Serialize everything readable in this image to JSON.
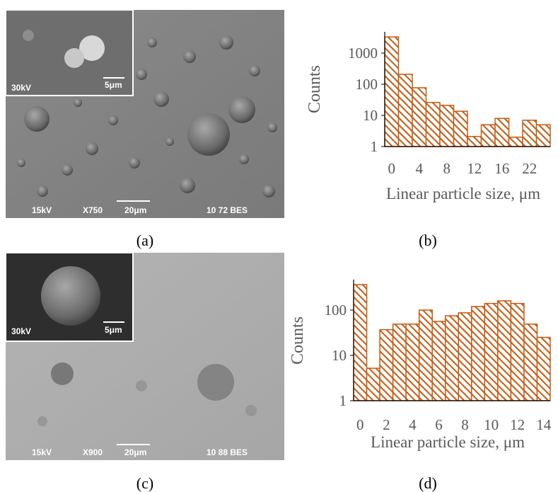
{
  "chart_data": [
    {
      "type": "bar",
      "ylabel": "Counts",
      "xlabel": "Linear particle size, μm",
      "categories": [
        "0",
        null,
        "4",
        null,
        "8",
        null,
        "12",
        null,
        "16",
        null,
        "22",
        null
      ],
      "values": [
        3300,
        208,
        77,
        26,
        21,
        13.6,
        2.1,
        5,
        8,
        2,
        7,
        5
      ],
      "color": "#c55a11",
      "log_y": true,
      "ylim": [
        1,
        4800
      ],
      "yticks": [
        1,
        10,
        100,
        1000
      ]
    },
    {
      "type": "bar",
      "ylabel": "Counts",
      "xlabel": "Linear particle size, μm",
      "categories": [
        "0",
        null,
        "2",
        null,
        "4",
        null,
        "6",
        null,
        "8",
        null,
        "10",
        null,
        "12",
        null,
        "14"
      ],
      "values": [
        365,
        5.2,
        37,
        49,
        49,
        100,
        56,
        75,
        87,
        120,
        140,
        160,
        140,
        49,
        25
      ],
      "color": "#c55a11",
      "log_y": true,
      "ylim": [
        1,
        470
      ],
      "yticks": [
        1,
        10,
        100
      ]
    }
  ],
  "images": [
    {
      "inset": [
        "30kV",
        "5μm"
      ],
      "footer": [
        "15kV",
        "X750",
        "20μm",
        "10 72 BES"
      ]
    },
    {
      "inset": [
        "30kV",
        "5μm"
      ],
      "footer": [
        "15kV",
        "X900",
        "20μm",
        "10 88 BES"
      ]
    }
  ],
  "captions": [
    "(a)",
    "(b)",
    "(c)",
    "(d)"
  ]
}
